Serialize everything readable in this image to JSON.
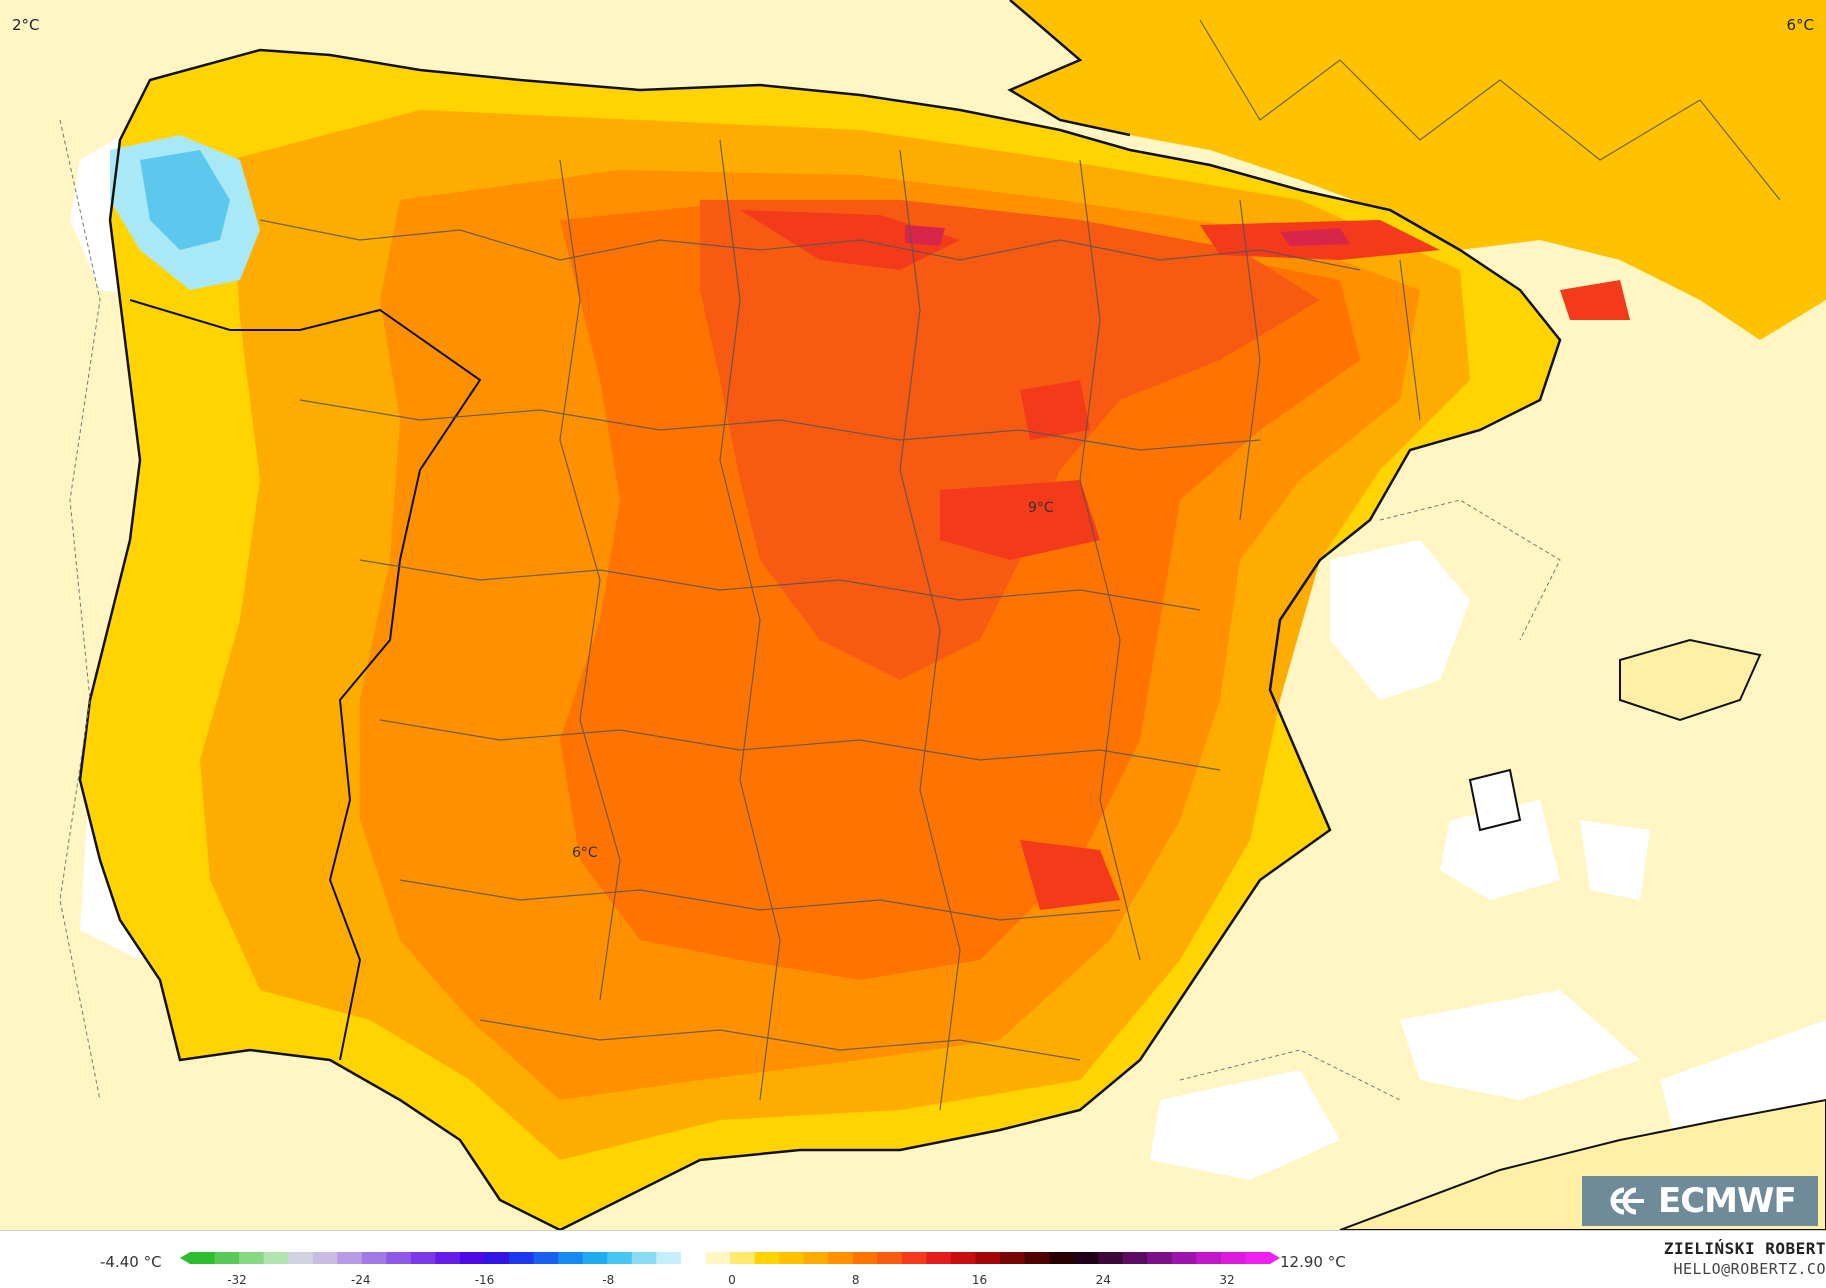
{
  "map": {
    "corner_labels": {
      "top_left": "2°C",
      "top_right": "6°C"
    },
    "point_labels": {
      "center": "9°C",
      "southwest": "6°C"
    },
    "colors": {
      "sea": "#fff6c4",
      "pale_yellow": "#fff0a6",
      "yellow": "#ffd400",
      "gold": "#ffc200",
      "light_orange": "#ffac00",
      "orange": "#ff9000",
      "dark_orange": "#ff7400",
      "red_orange": "#f85a12",
      "red": "#f33a1a",
      "crimson": "#d8264a",
      "magenta": "#b8186a",
      "light_blue": "#a9e8f6",
      "blue": "#5cc8ee",
      "coast": "#111111",
      "border": "#555555"
    }
  },
  "logo": {
    "icon": "ecmwf-logo-icon",
    "text": "ECMWF"
  },
  "legend": {
    "min_value": "-4.40 °C",
    "max_value": "12.90 °C",
    "ticks": [
      "-32",
      "-24",
      "-16",
      "-8",
      "0",
      "8",
      "16",
      "24",
      "32"
    ],
    "colors": [
      "#2ebd2e",
      "#57ca55",
      "#86d883",
      "#b2e3ae",
      "#d2d2e2",
      "#c9bde4",
      "#b79be6",
      "#a27ae6",
      "#8f58e6",
      "#7b38e6",
      "#651ce6",
      "#4d0ae6",
      "#3014e6",
      "#1c38ee",
      "#1860f0",
      "#1888f2",
      "#20aaf2",
      "#48c6f2",
      "#88dcf4",
      "#c6eefa",
      "#ffffff",
      "#fff6c4",
      "#ffea70",
      "#ffd400",
      "#ffc200",
      "#ffac00",
      "#ff9000",
      "#ff7400",
      "#f85a12",
      "#f33a1a",
      "#e21c1c",
      "#c80e0e",
      "#a00808",
      "#780404",
      "#500202",
      "#280000",
      "#200018",
      "#3c0838",
      "#5c0c62",
      "#7c108a",
      "#9c14ac",
      "#c018c8",
      "#dc1cdc",
      "#f020f0"
    ]
  },
  "credits": {
    "author": "ZIELIŃSKI ROBERT",
    "email": "HELLO@ROBERTZ.CO"
  }
}
